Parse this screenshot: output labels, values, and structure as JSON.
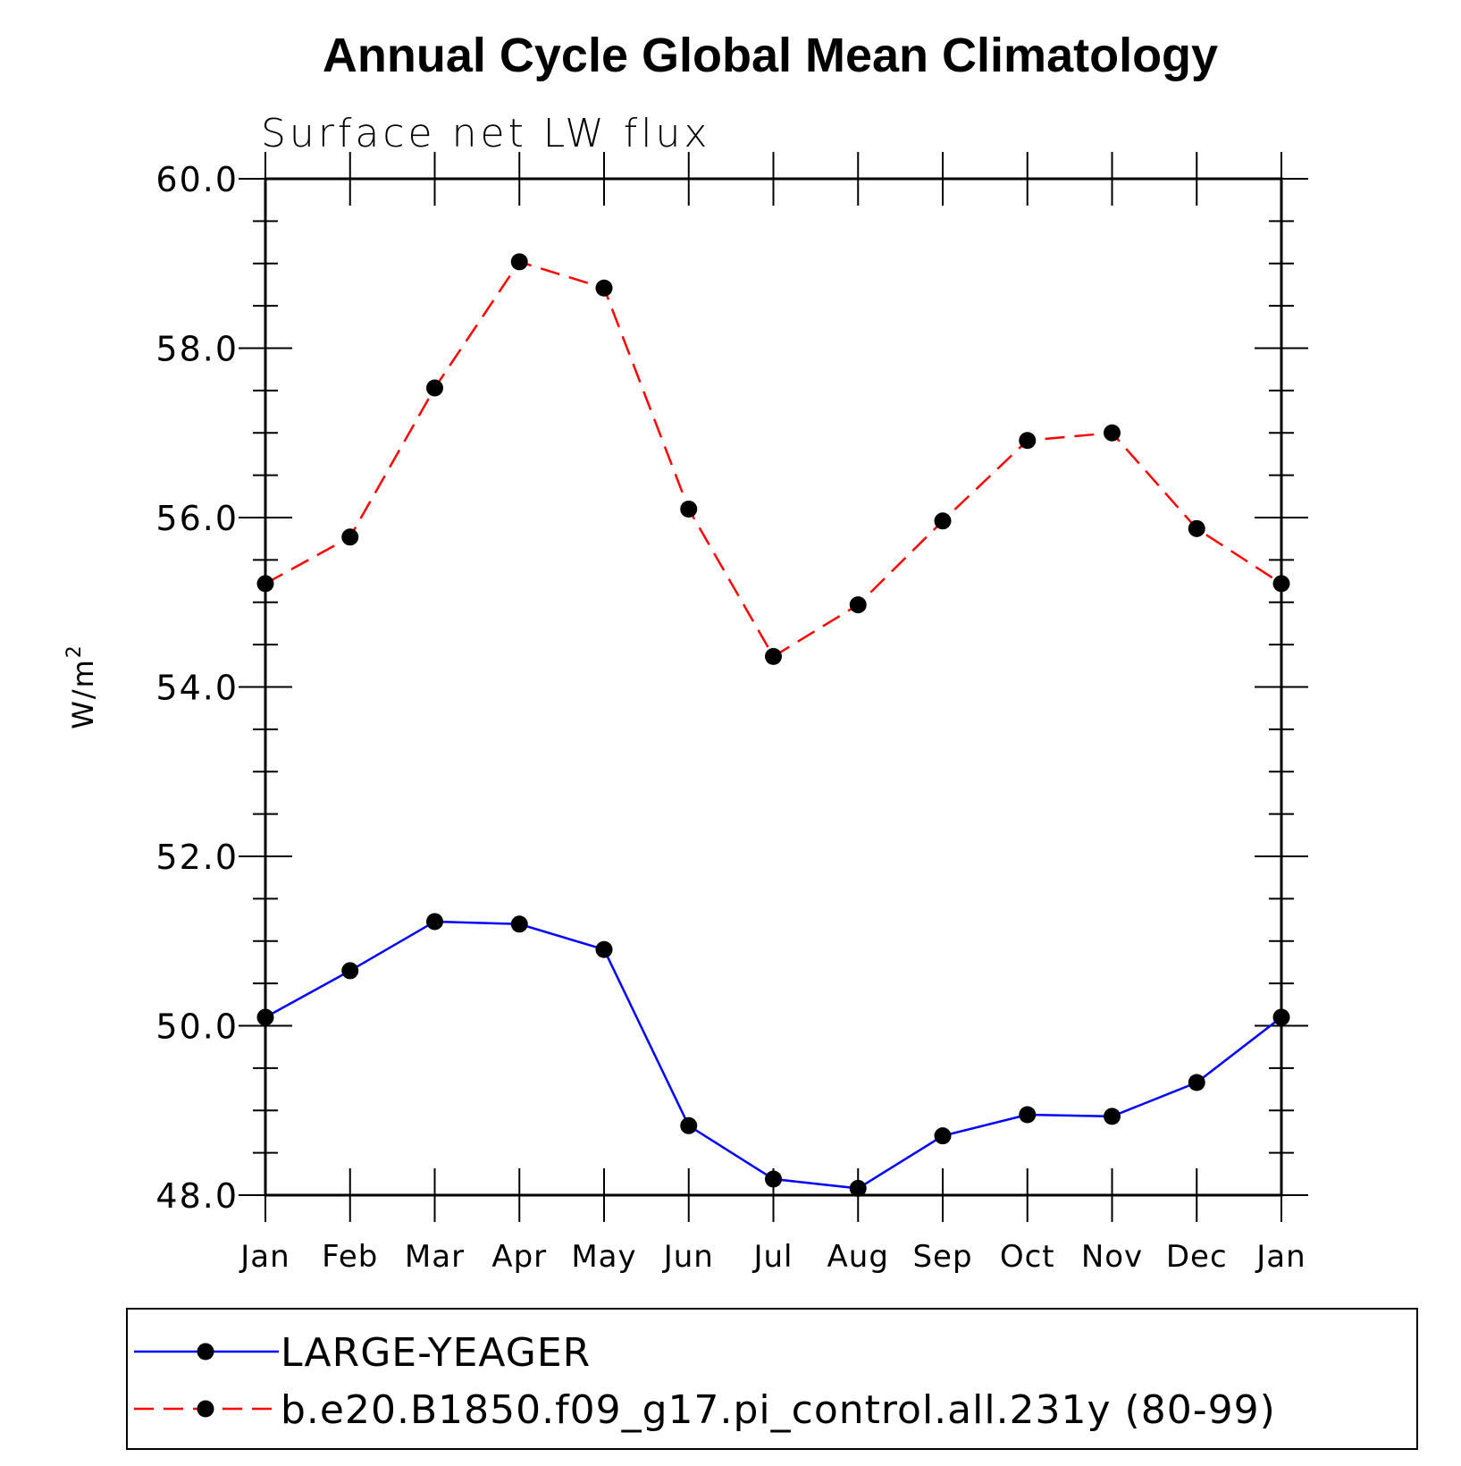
{
  "chart_data": {
    "type": "line",
    "title": "Annual Cycle Global Mean Climatology",
    "subtitle": "Surface net LW flux",
    "ylabel": "W/m",
    "ylabel_sup": "2",
    "xlabel": "",
    "categories": [
      "Jan",
      "Feb",
      "Mar",
      "Apr",
      "May",
      "Jun",
      "Jul",
      "Aug",
      "Sep",
      "Oct",
      "Nov",
      "Dec",
      "Jan"
    ],
    "ylim": [
      48.0,
      60.0
    ],
    "yticks": [
      48.0,
      50.0,
      52.0,
      54.0,
      56.0,
      58.0,
      60.0
    ],
    "ytick_labels": [
      "48.0",
      "50.0",
      "52.0",
      "54.0",
      "56.0",
      "58.0",
      "60.0"
    ],
    "grid": false,
    "legend_position": "bottom",
    "series": [
      {
        "name": "LARGE-YEAGER",
        "color": "#0000ff",
        "line_style": "solid",
        "marker": "filled-circle",
        "values": [
          50.1,
          50.65,
          51.23,
          51.2,
          50.9,
          48.82,
          48.19,
          48.08,
          48.7,
          48.95,
          48.93,
          49.33,
          50.1
        ]
      },
      {
        "name": "b.e20.B1850.f09_g17.pi_control.all.231y (80-99)",
        "color": "#ff0000",
        "line_style": "dashed",
        "marker": "filled-circle",
        "values": [
          55.22,
          55.77,
          57.53,
          59.02,
          58.71,
          56.1,
          54.36,
          54.97,
          55.96,
          56.91,
          57.0,
          55.87,
          55.22
        ]
      }
    ]
  }
}
